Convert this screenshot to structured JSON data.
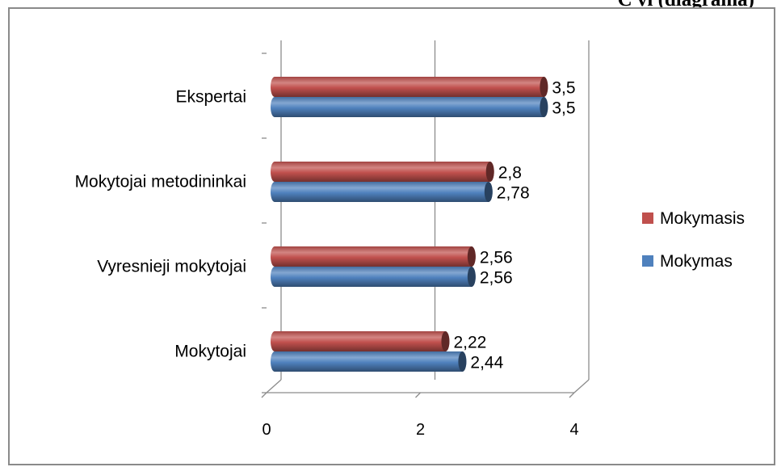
{
  "header": {
    "partial_title": "C  vi  (diagrama)"
  },
  "chart_data": {
    "type": "bar",
    "orientation": "horizontal",
    "style": "3d-cylinder",
    "categories": [
      "Mokytojai",
      "Vyresnieji mokytojai",
      "Mokytojai metodininkai",
      "Ekspertai"
    ],
    "series": [
      {
        "name": "Mokymasis",
        "color": "#c0504d",
        "values": [
          2.22,
          2.56,
          2.8,
          3.5
        ],
        "labels": [
          "2,22",
          "2,56",
          "2,8",
          "3,5"
        ]
      },
      {
        "name": "Mokymas",
        "color": "#4f81bd",
        "values": [
          2.44,
          2.56,
          2.78,
          3.5
        ],
        "labels": [
          "2,44",
          "2,56",
          "2,78",
          "3,5"
        ]
      }
    ],
    "xlim": [
      0,
      4
    ],
    "x_ticks": [
      0,
      2,
      4
    ],
    "x_tick_labels": [
      "0",
      "2",
      "4"
    ],
    "grid": true,
    "legend": {
      "position": "right",
      "entries": [
        "Mokymasis",
        "Mokymas"
      ]
    }
  }
}
